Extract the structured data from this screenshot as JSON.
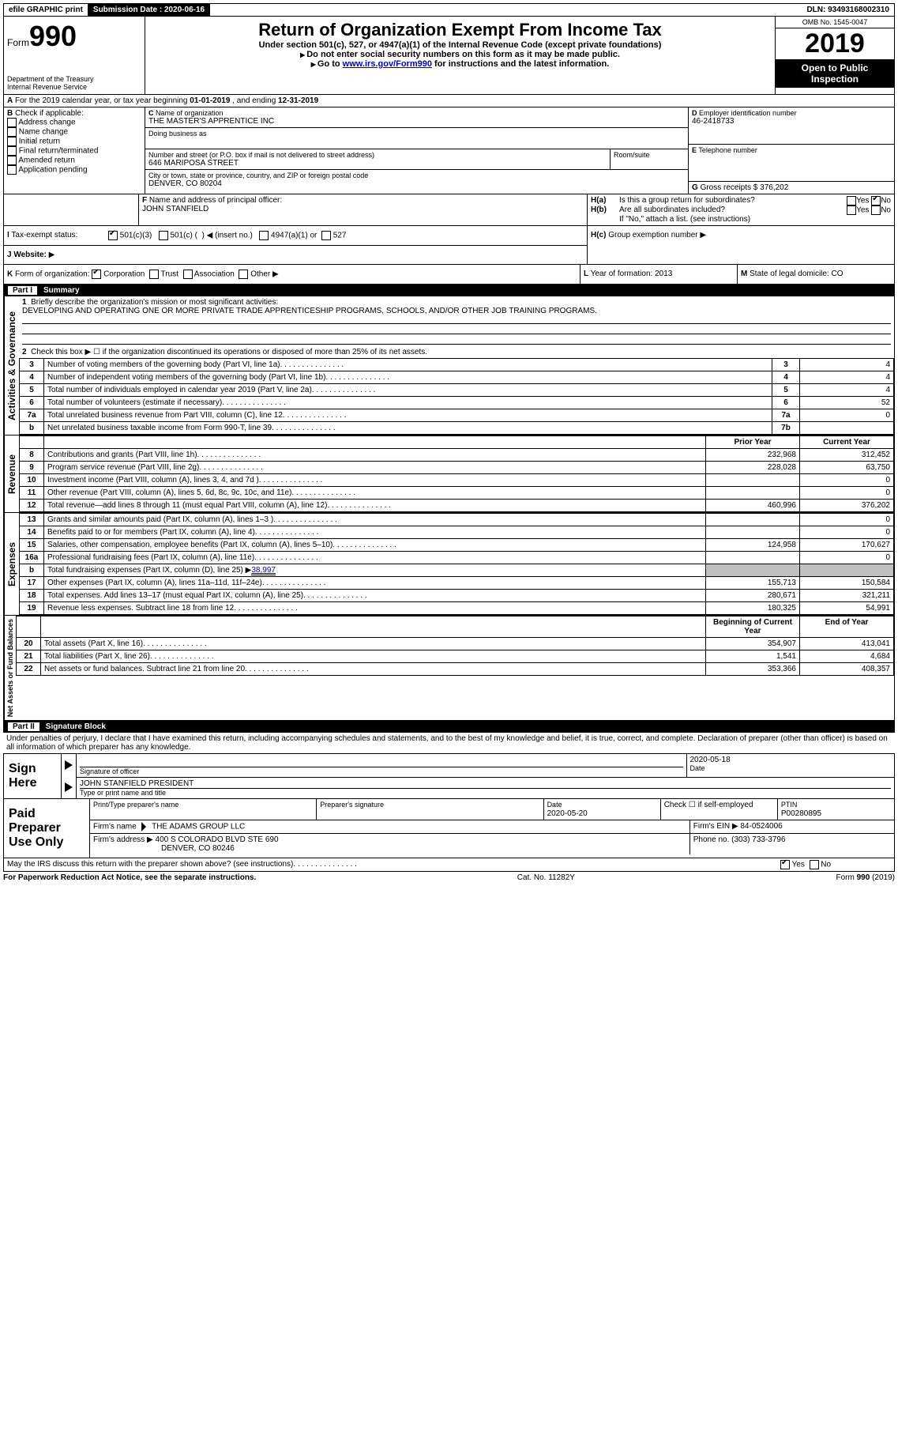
{
  "topbar": {
    "efile": "efile GRAPHIC print",
    "submission_label": "Submission Date :",
    "submission_date": "2020-06-16",
    "dln_label": "DLN:",
    "dln": "93493168002310"
  },
  "header": {
    "form_label": "Form",
    "form_number": "990",
    "dept": "Department of the Treasury",
    "irs": "Internal Revenue Service",
    "title": "Return of Organization Exempt From Income Tax",
    "subtitle1": "Under section 501(c), 527, or 4947(a)(1) of the Internal Revenue Code (except private foundations)",
    "subtitle2": "Do not enter social security numbers on this form as it may be made public.",
    "subtitle3_pre": "Go to ",
    "subtitle3_link": "www.irs.gov/Form990",
    "subtitle3_post": " for instructions and the latest information.",
    "omb_label": "OMB No. 1545-0047",
    "year": "2019",
    "inspection": "Open to Public Inspection"
  },
  "periodA": {
    "text_pre": "For the 2019 calendar year, or tax year beginning ",
    "begin": "01-01-2019",
    "mid": " , and ending ",
    "end": "12-31-2019"
  },
  "boxB": {
    "label": "Check if applicable:",
    "addr": "Address change",
    "name": "Name change",
    "initial": "Initial return",
    "final": "Final return/terminated",
    "amended": "Amended return",
    "pending": "Application pending"
  },
  "boxC": {
    "name_label": "Name of organization",
    "name": "THE MASTER'S APPRENTICE INC",
    "dba_label": "Doing business as",
    "dba": "",
    "street_label": "Number and street (or P.O. box if mail is not delivered to street address)",
    "street": "646 MARIPOSA STREET",
    "room_label": "Room/suite",
    "city_label": "City or town, state or province, country, and ZIP or foreign postal code",
    "city": "DENVER, CO  80204"
  },
  "boxD": {
    "label": "Employer identification number",
    "value": "46-2418733"
  },
  "boxE": {
    "label": "Telephone number",
    "value": ""
  },
  "boxG": {
    "label": "Gross receipts $",
    "value": "376,202"
  },
  "boxF": {
    "label": "Name and address of principal officer:",
    "name": "JOHN STANFIELD"
  },
  "boxH": {
    "a_label": "Is this a group return for subordinates?",
    "a_yes": "Yes",
    "a_no": "No",
    "a_checked": "no",
    "b_label": "Are all subordinates included?",
    "b_yes": "Yes",
    "b_no": "No",
    "b_note": "If \"No,\" attach a list. (see instructions)",
    "c_label": "Group exemption number"
  },
  "taxExempt": {
    "label": "Tax-exempt status:",
    "opt1": "501(c)(3)",
    "opt2_pre": "501(c) (",
    "opt2_post": ")",
    "opt2_insert": "(insert no.)",
    "opt3": "4947(a)(1) or",
    "opt4": "527"
  },
  "boxJ": {
    "label": "Website:",
    "value": ""
  },
  "boxK": {
    "label": "Form of organization:",
    "corp": "Corporation",
    "trust": "Trust",
    "assoc": "Association",
    "other": "Other"
  },
  "boxL": {
    "label": "Year of formation:",
    "value": "2013"
  },
  "boxM": {
    "label": "State of legal domicile:",
    "value": "CO"
  },
  "part1": {
    "bar_part": "Part I",
    "bar_title": "Summary",
    "line1_label": "Briefly describe the organization's mission or most significant activities:",
    "line1_text": "DEVELOPING AND OPERATING ONE OR MORE PRIVATE TRADE APPRENTICESHIP PROGRAMS, SCHOOLS, AND/OR OTHER JOB TRAINING PROGRAMS.",
    "line2": "Check this box ▶ ☐ if the organization discontinued its operations or disposed of more than 25% of its net assets.",
    "vlabel_activities": "Activities & Governance",
    "vlabel_revenue": "Revenue",
    "vlabel_expenses": "Expenses",
    "vlabel_net": "Net Assets or Fund Balances",
    "col_prior": "Prior Year",
    "col_current": "Current Year",
    "col_boy": "Beginning of Current Year",
    "col_eoy": "End of Year",
    "rows_gov": [
      {
        "n": "3",
        "t": "Number of voting members of the governing body (Part VI, line 1a)",
        "b": "3",
        "v": "4"
      },
      {
        "n": "4",
        "t": "Number of independent voting members of the governing body (Part VI, line 1b)",
        "b": "4",
        "v": "4"
      },
      {
        "n": "5",
        "t": "Total number of individuals employed in calendar year 2019 (Part V, line 2a)",
        "b": "5",
        "v": "4"
      },
      {
        "n": "6",
        "t": "Total number of volunteers (estimate if necessary)",
        "b": "6",
        "v": "52"
      },
      {
        "n": "7a",
        "t": "Total unrelated business revenue from Part VIII, column (C), line 12",
        "b": "7a",
        "v": "0"
      },
      {
        "n": "b",
        "t": "Net unrelated business taxable income from Form 990-T, line 39",
        "b": "7b",
        "v": ""
      }
    ],
    "rows_rev": [
      {
        "n": "8",
        "t": "Contributions and grants (Part VIII, line 1h)",
        "p": "232,968",
        "c": "312,452"
      },
      {
        "n": "9",
        "t": "Program service revenue (Part VIII, line 2g)",
        "p": "228,028",
        "c": "63,750"
      },
      {
        "n": "10",
        "t": "Investment income (Part VIII, column (A), lines 3, 4, and 7d )",
        "p": "",
        "c": "0"
      },
      {
        "n": "11",
        "t": "Other revenue (Part VIII, column (A), lines 5, 6d, 8c, 9c, 10c, and 11e)",
        "p": "",
        "c": "0"
      },
      {
        "n": "12",
        "t": "Total revenue—add lines 8 through 11 (must equal Part VIII, column (A), line 12)",
        "p": "460,996",
        "c": "376,202"
      }
    ],
    "rows_exp": [
      {
        "n": "13",
        "t": "Grants and similar amounts paid (Part IX, column (A), lines 1–3 )",
        "p": "",
        "c": "0"
      },
      {
        "n": "14",
        "t": "Benefits paid to or for members (Part IX, column (A), line 4)",
        "p": "",
        "c": "0"
      },
      {
        "n": "15",
        "t": "Salaries, other compensation, employee benefits (Part IX, column (A), lines 5–10)",
        "p": "124,958",
        "c": "170,627"
      },
      {
        "n": "16a",
        "t": "Professional fundraising fees (Part IX, column (A), line 11e)",
        "p": "",
        "c": "0"
      }
    ],
    "line16b_pre": "Total fundraising expenses (Part IX, column (D), line 25) ▶",
    "line16b_val": "38,997",
    "rows_exp2": [
      {
        "n": "17",
        "t": "Other expenses (Part IX, column (A), lines 11a–11d, 11f–24e)",
        "p": "155,713",
        "c": "150,584"
      },
      {
        "n": "18",
        "t": "Total expenses. Add lines 13–17 (must equal Part IX, column (A), line 25)",
        "p": "280,671",
        "c": "321,211"
      },
      {
        "n": "19",
        "t": "Revenue less expenses. Subtract line 18 from line 12",
        "p": "180,325",
        "c": "54,991"
      }
    ],
    "rows_net": [
      {
        "n": "20",
        "t": "Total assets (Part X, line 16)",
        "p": "354,907",
        "c": "413,041"
      },
      {
        "n": "21",
        "t": "Total liabilities (Part X, line 26)",
        "p": "1,541",
        "c": "4,684"
      },
      {
        "n": "22",
        "t": "Net assets or fund balances. Subtract line 21 from line 20",
        "p": "353,366",
        "c": "408,357"
      }
    ]
  },
  "part2": {
    "bar_part": "Part II",
    "bar_title": "Signature Block",
    "perjury": "Under penalties of perjury, I declare that I have examined this return, including accompanying schedules and statements, and to the best of my knowledge and belief, it is true, correct, and complete. Declaration of preparer (other than officer) is based on all information of which preparer has any knowledge."
  },
  "sign": {
    "here": "Sign Here",
    "officer_sig": "Signature of officer",
    "date_label": "Date",
    "date": "2020-05-18",
    "officer_name": "JOHN STANFIELD PRESIDENT",
    "officer_name_label": "Type or print name and title"
  },
  "paid": {
    "title": "Paid Preparer Use Only",
    "col_name": "Print/Type preparer's name",
    "col_sig": "Preparer's signature",
    "col_date": "Date",
    "date": "2020-05-20",
    "self_label": "Check ☐ if self-employed",
    "ptin_label": "PTIN",
    "ptin": "P00280895",
    "firm_name_label": "Firm's name",
    "firm_name": "THE ADAMS GROUP LLC",
    "firm_ein_label": "Firm's EIN ▶",
    "firm_ein": "84-0524006",
    "firm_addr_label": "Firm's address ▶",
    "firm_addr1": "400 S COLORADO BLVD STE 690",
    "firm_addr2": "DENVER, CO  80246",
    "phone_label": "Phone no.",
    "phone": "(303) 733-3796"
  },
  "discuss": {
    "text": "May the IRS discuss this return with the preparer shown above? (see instructions)",
    "yes": "Yes",
    "no": "No"
  },
  "footer": {
    "left": "For Paperwork Reduction Act Notice, see the separate instructions.",
    "mid": "Cat. No. 11282Y",
    "right": "Form 990 (2019)"
  }
}
